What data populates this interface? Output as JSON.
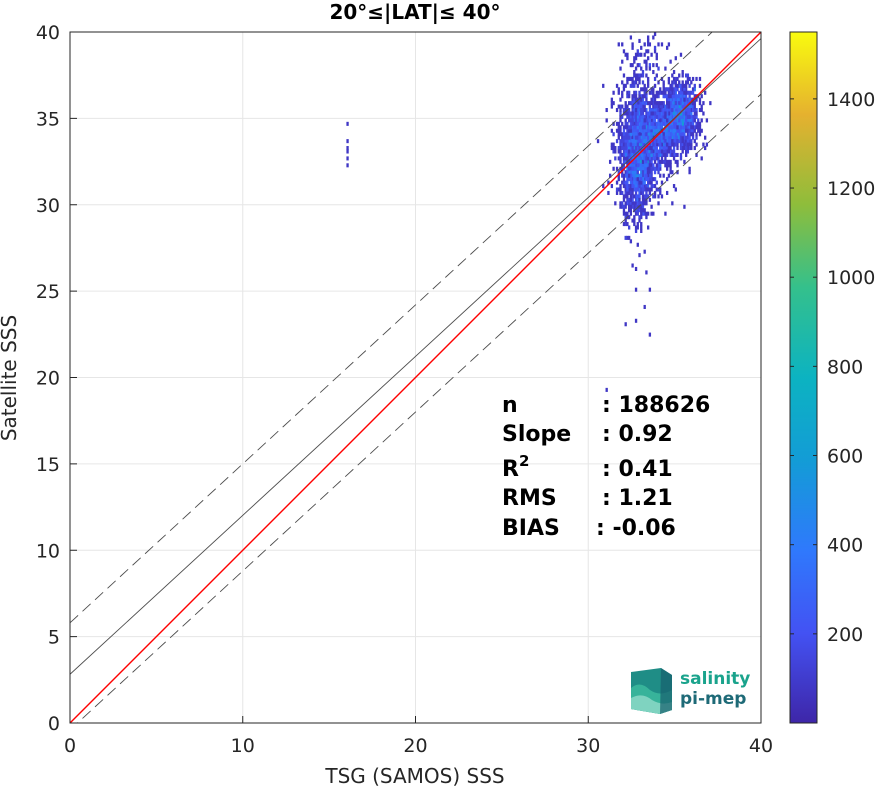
{
  "chart_data": {
    "type": "heatmap",
    "title": "20°≤|LAT|≤ 40°",
    "xlabel": "TSG (SAMOS) SSS",
    "ylabel": "Satellite SSS",
    "xlim": [
      0,
      40
    ],
    "ylim": [
      0,
      40
    ],
    "x_ticks": [
      "0",
      "10",
      "20",
      "30",
      "40"
    ],
    "y_ticks": [
      "0",
      "5",
      "10",
      "15",
      "20",
      "25",
      "30",
      "35",
      "40"
    ],
    "grid": true,
    "colorbar": {
      "range": [
        0,
        1550
      ],
      "ticks": [
        "200",
        "400",
        "600",
        "800",
        "1000",
        "1200",
        "1400"
      ],
      "tick_values": [
        200,
        400,
        600,
        800,
        1000,
        1200,
        1400
      ]
    },
    "lines": [
      {
        "name": "1:1",
        "slope": 1.0,
        "intercept": 0.0,
        "color": "#ff0000",
        "style": "solid"
      },
      {
        "name": "fit",
        "slope": 0.92,
        "intercept": 2.82,
        "color": "#4d4d4d",
        "style": "solid"
      },
      {
        "name": "upper bound",
        "slope": 0.92,
        "intercept": 5.8,
        "color": "#4d4d4d",
        "style": "dashed"
      },
      {
        "name": "lower bound",
        "slope": 0.92,
        "intercept": -0.4,
        "color": "#4d4d4d",
        "style": "dashed"
      }
    ],
    "density_clusters": [
      {
        "x": 35.3,
        "y": 35.2,
        "sx": 0.55,
        "sy": 1.0,
        "count": 1000
      },
      {
        "x": 33.0,
        "y": 33.5,
        "sx": 0.65,
        "sy": 1.6,
        "count": 1600
      },
      {
        "x": 32.7,
        "y": 31.2,
        "sx": 0.4,
        "sy": 1.3,
        "count": 380
      },
      {
        "x": 34.3,
        "y": 34.3,
        "sx": 0.6,
        "sy": 0.8,
        "count": 550
      },
      {
        "x": 33.2,
        "y": 37.8,
        "sx": 0.6,
        "sy": 1.1,
        "count": 110
      }
    ],
    "scatter_cells": [
      [
        16.0,
        34.6
      ],
      [
        16.0,
        33.8
      ],
      [
        16.0,
        33.3
      ],
      [
        16.0,
        33.0
      ],
      [
        16.0,
        32.6
      ],
      [
        16.0,
        32.3
      ],
      [
        32.5,
        26.5
      ],
      [
        32.7,
        26.3
      ],
      [
        33.2,
        27.3
      ],
      [
        33.4,
        26.0
      ],
      [
        32.4,
        28.0
      ],
      [
        32.7,
        25.0
      ],
      [
        33.5,
        25.0
      ],
      [
        33.3,
        24.0
      ],
      [
        32.1,
        23.1
      ],
      [
        32.8,
        23.3
      ],
      [
        33.5,
        22.5
      ],
      [
        31.3,
        35.9
      ],
      [
        31.4,
        35.7
      ],
      [
        32.2,
        28.8
      ],
      [
        35.5,
        29.8
      ],
      [
        35.0,
        30.8
      ],
      [
        36.8,
        33.9
      ],
      [
        35.9,
        32.1
      ],
      [
        33.9,
        39.0
      ],
      [
        34.6,
        39.3
      ],
      [
        35.4,
        38.8
      ],
      [
        31.0,
        19.4
      ]
    ],
    "stats": [
      {
        "label": "n",
        "value": ": 188626"
      },
      {
        "label": "Slope",
        "value": ": 0.92"
      },
      {
        "label": "R2",
        "value": ": 0.41"
      },
      {
        "label": "RMS",
        "value": ": 1.21"
      },
      {
        "label": "BIAS",
        "value": ": -0.06"
      }
    ]
  },
  "stats_display": {
    "n_label": "n",
    "n_value": ": 188626",
    "slope_label": "Slope",
    "slope_value": ": 0.92",
    "r2_base": "R",
    "r2_sup": "2",
    "r2_value": ": 0.41",
    "rms_label": "RMS",
    "rms_value": ": 1.21",
    "bias_label": "BIAS",
    "bias_value": ": -0.06"
  },
  "logo": {
    "line1": "salinity",
    "line2": "pi-mep",
    "color_line1": "#1aa38c",
    "color_line2": "#1e6a77"
  }
}
